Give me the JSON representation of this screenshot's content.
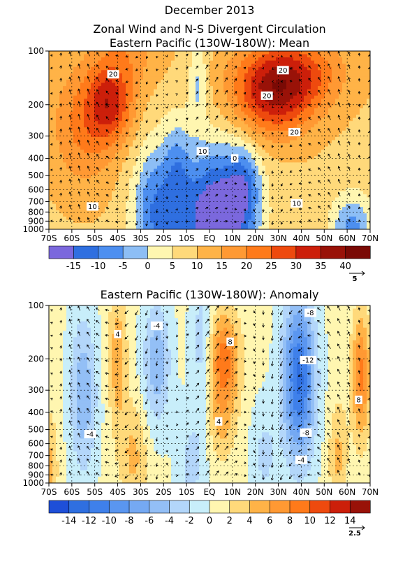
{
  "figure_title": "December 2013",
  "chart_data": [
    {
      "type": "heatmap",
      "title_line1": "Zonal Wind and N-S Divergent Circulation",
      "title_line2": "Eastern Pacific (130W-180W): Mean",
      "x_ticks": [
        "70S",
        "60S",
        "50S",
        "40S",
        "30S",
        "20S",
        "10S",
        "EQ",
        "10N",
        "20N",
        "30N",
        "40N",
        "50N",
        "60N",
        "70N"
      ],
      "x_values": [
        -70,
        -60,
        -50,
        -40,
        -30,
        -20,
        -10,
        0,
        10,
        20,
        30,
        40,
        50,
        60,
        70
      ],
      "y_ticks": [
        "100",
        "200",
        "300",
        "400",
        "500",
        "600",
        "700",
        "800",
        "900",
        "1000"
      ],
      "y_values": [
        100,
        200,
        300,
        400,
        500,
        600,
        700,
        800,
        900,
        1000
      ],
      "y_scale": "log",
      "colorbar": {
        "labels": [
          "-15",
          "-10",
          "-5",
          "0",
          "5",
          "10",
          "15",
          "20",
          "25",
          "30",
          "35",
          "40"
        ],
        "colors": [
          "#7b68dd",
          "#2f6fe0",
          "#4d8ff0",
          "#8dbef5",
          "#fff6b0",
          "#ffd97a",
          "#ffb347",
          "#ff9933",
          "#ff7a1a",
          "#ee4a0e",
          "#cc1f0a",
          "#991208",
          "#7a0a05"
        ]
      },
      "vector_ref": "5",
      "contour_labels": [
        {
          "text": "20",
          "lat": -42,
          "p": 135
        },
        {
          "text": "20",
          "lat": 32,
          "p": 128
        },
        {
          "text": "20",
          "lat": 25,
          "p": 178
        },
        {
          "text": "20",
          "lat": 37,
          "p": 285
        },
        {
          "text": "10",
          "lat": -3,
          "p": 365
        },
        {
          "text": "0",
          "lat": 11,
          "p": 400
        },
        {
          "text": "10",
          "lat": -51,
          "p": 745
        },
        {
          "text": "10",
          "lat": 38,
          "p": 715
        }
      ],
      "fields": [
        {
          "value": 20,
          "lat": -43,
          "p": 195,
          "slat": 10,
          "slogp": 0.22
        },
        {
          "value": 20,
          "lat": 28,
          "p": 190,
          "slat": 18,
          "slogp": 0.22
        },
        {
          "value": 12,
          "lat": -55,
          "p": 260,
          "slat": 14,
          "slogp": 0.35
        },
        {
          "value": 8,
          "lat": -35,
          "p": 100,
          "slat": 14,
          "slogp": 0.2
        },
        {
          "value": 18,
          "lat": 35,
          "p": 130,
          "slat": 22,
          "slogp": 0.2
        },
        {
          "value": -32,
          "lat": 3,
          "p": 900,
          "slat": 16,
          "slogp": 0.4
        },
        {
          "value": -18,
          "lat": -24,
          "p": 800,
          "slat": 10,
          "slogp": 0.38
        },
        {
          "value": -10,
          "lat": -14,
          "p": 450,
          "slat": 6,
          "slogp": 0.3
        },
        {
          "value": -12,
          "lat": 15,
          "p": 560,
          "slat": 7,
          "slogp": 0.22
        },
        {
          "value": -16,
          "lat": 62,
          "p": 1000,
          "slat": 9,
          "slogp": 0.2
        },
        {
          "value": -10,
          "lat": -5,
          "p": 150,
          "slat": 4,
          "slogp": 0.25
        }
      ],
      "base_value": 9
    },
    {
      "type": "heatmap",
      "title_line1": "Eastern Pacific (130W-180W): Anomaly",
      "x_ticks": [
        "70S",
        "60S",
        "50S",
        "40S",
        "30S",
        "20S",
        "10S",
        "EQ",
        "10N",
        "20N",
        "30N",
        "40N",
        "50N",
        "60N",
        "70N"
      ],
      "x_values": [
        -70,
        -60,
        -50,
        -40,
        -30,
        -20,
        -10,
        0,
        10,
        20,
        30,
        40,
        50,
        60,
        70
      ],
      "y_ticks": [
        "100",
        "200",
        "300",
        "400",
        "500",
        "600",
        "700",
        "800",
        "900",
        "1000"
      ],
      "y_values": [
        100,
        200,
        300,
        400,
        500,
        600,
        700,
        800,
        900,
        1000
      ],
      "y_scale": "log",
      "colorbar": {
        "labels": [
          "-14",
          "-12",
          "-10",
          "-8",
          "-6",
          "-4",
          "-2",
          "0",
          "2",
          "4",
          "6",
          "8",
          "10",
          "12",
          "14"
        ],
        "colors": [
          "#1e4fd8",
          "#2f6fe0",
          "#3f80ea",
          "#5a96f0",
          "#75a9f3",
          "#93bff6",
          "#b3d6fa",
          "#c8eefa",
          "#fff6b0",
          "#ffd97a",
          "#ffb347",
          "#ff9933",
          "#ff7a1a",
          "#ee4a0e",
          "#cc1f0a",
          "#991208"
        ]
      },
      "vector_ref": "2.5",
      "contour_labels": [
        {
          "text": "4",
          "lat": -40,
          "p": 145
        },
        {
          "text": "-4",
          "lat": -23,
          "p": 130
        },
        {
          "text": "8",
          "lat": 9,
          "p": 160
        },
        {
          "text": "-8",
          "lat": 44,
          "p": 110
        },
        {
          "text": "-12",
          "lat": 43,
          "p": 203
        },
        {
          "text": "4",
          "lat": 4,
          "p": 450
        },
        {
          "text": "-8",
          "lat": 42,
          "p": 520
        },
        {
          "text": "-4",
          "lat": 40,
          "p": 740
        },
        {
          "text": "8",
          "lat": 65,
          "p": 340
        },
        {
          "text": "-4",
          "lat": -52,
          "p": 530
        }
      ],
      "fields": [
        {
          "value": 9,
          "lat": 6,
          "p": 210,
          "slat": 7,
          "slogp": 0.28
        },
        {
          "value": 3,
          "lat": 5,
          "p": 500,
          "slat": 6,
          "slogp": 0.2
        },
        {
          "value": -13,
          "lat": 39,
          "p": 260,
          "slat": 7,
          "slogp": 0.45
        },
        {
          "value": -6,
          "lat": -23,
          "p": 210,
          "slat": 6,
          "slogp": 0.35
        },
        {
          "value": -6,
          "lat": -55,
          "p": 320,
          "slat": 6,
          "slogp": 0.45
        },
        {
          "value": 5,
          "lat": -40,
          "p": 200,
          "slat": 4,
          "slogp": 0.4
        },
        {
          "value": 4,
          "lat": -33,
          "p": 700,
          "slat": 6,
          "slogp": 0.3
        },
        {
          "value": 8,
          "lat": 66,
          "p": 250,
          "slat": 4,
          "slogp": 0.35
        },
        {
          "value": -4,
          "lat": -3,
          "p": 170,
          "slat": 5,
          "slogp": 0.45
        },
        {
          "value": -3,
          "lat": -8,
          "p": 800,
          "slat": 6,
          "slogp": 0.3
        },
        {
          "value": -3,
          "lat": 24,
          "p": 700,
          "slat": 6,
          "slogp": 0.3
        },
        {
          "value": 4,
          "lat": 56,
          "p": 700,
          "slat": 4,
          "slogp": 0.3
        },
        {
          "value": 4,
          "lat": -70,
          "p": 800,
          "slat": 4,
          "slogp": 0.3
        }
      ],
      "base_value": 0.5
    }
  ]
}
